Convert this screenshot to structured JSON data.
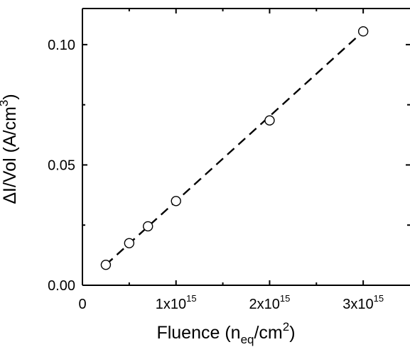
{
  "chart_data": {
    "type": "scatter",
    "xlabel": {
      "prefix": "Fluence (n",
      "subscript": "eq",
      "middle": "/cm",
      "superscript": "2",
      "suffix": ")"
    },
    "ylabel": {
      "prefix": "ΔI/Vol (A/cm",
      "superscript": "3",
      "suffix": ")"
    },
    "xlim": [
      0,
      3500000000000000.0
    ],
    "ylim": [
      0,
      0.115
    ],
    "x_ticks": [
      {
        "value": 0,
        "mantissa": "0",
        "exponent": ""
      },
      {
        "value": 1000000000000000.0,
        "mantissa": "1x10",
        "exponent": "15"
      },
      {
        "value": 2000000000000000.0,
        "mantissa": "2x10",
        "exponent": "15"
      },
      {
        "value": 3000000000000000.0,
        "mantissa": "3x10",
        "exponent": "15"
      }
    ],
    "y_ticks": [
      {
        "value": 0.0,
        "label": "0.00"
      },
      {
        "value": 0.05,
        "label": "0.05"
      },
      {
        "value": 0.1,
        "label": "0.10"
      }
    ],
    "series": [
      {
        "marker": "open-circle",
        "x": [
          250000000000000.0,
          500000000000000.0,
          700000000000000.0,
          1000000000000000.0,
          2000000000000000.0,
          3000000000000000.0
        ],
        "y": [
          0.0085,
          0.0175,
          0.0245,
          0.035,
          0.0685,
          0.1055
        ]
      }
    ],
    "fit_line": {
      "style": "dashed",
      "x": [
        250000000000000.0,
        3000000000000000.0
      ],
      "y": [
        0.0085,
        0.1055
      ]
    },
    "grid": false,
    "colors": {
      "axis": "#000000",
      "marker": "#000000",
      "fit_line": "#000000",
      "background": "#ffffff"
    }
  }
}
